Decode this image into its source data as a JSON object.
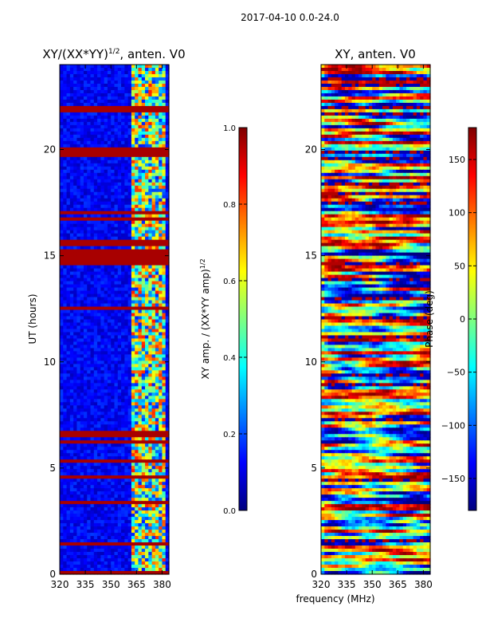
{
  "figure": {
    "suptitle": "2017-04-10 0.0-24.0",
    "xlabel": "frequency (MHz)"
  },
  "chart_data": [
    {
      "type": "heatmap",
      "title": "XY/(XX*YY)^1/2, anten. V0",
      "title_base": "XY/(XX*YY)",
      "title_sup": "1/2",
      "title_tail": ", anten. V0",
      "xlabel": "frequency (MHz)",
      "ylabel": "UT (hours)",
      "xlim": [
        320,
        384
      ],
      "ylim": [
        0,
        24
      ],
      "xticks": [
        320,
        335,
        350,
        365,
        380
      ],
      "xtick_labels": [
        "320",
        "335",
        "350",
        "365",
        "380"
      ],
      "yticks": [
        0,
        5,
        10,
        15,
        20
      ],
      "ytick_labels": [
        "0",
        "5",
        "10",
        "15",
        "20"
      ],
      "colormap": "jet",
      "colorbar": {
        "label": "XY amp. / (XX*YY amp)^1/2",
        "label_base": "XY amp. / (XX*YY amp)",
        "label_sup": "1/2",
        "range": [
          0.0,
          1.0
        ],
        "ticks": [
          0.0,
          0.2,
          0.4,
          0.6,
          0.8,
          1.0
        ],
        "tick_labels": [
          "0.0",
          "0.2",
          "0.4",
          "0.6",
          "0.8",
          "1.0"
        ]
      },
      "description_values": {
        "background_level": 0.12,
        "band_365_383_level": 0.55,
        "saturated_hours": [
          0.0,
          6.2,
          6.5,
          14.6,
          15.0,
          15.6,
          19.8,
          20.0,
          21.9
        ]
      }
    },
    {
      "type": "heatmap",
      "title": "XY, anten. V0",
      "xlabel": "frequency (MHz)",
      "ylabel": "",
      "xlim": [
        320,
        384
      ],
      "ylim": [
        0,
        24
      ],
      "xticks": [
        320,
        335,
        350,
        365,
        380
      ],
      "xtick_labels": [
        "320",
        "335",
        "350",
        "365",
        "380"
      ],
      "yticks": [
        0,
        5,
        10,
        15,
        20
      ],
      "ytick_labels": [
        "0",
        "5",
        "10",
        "15",
        "20"
      ],
      "colormap": "jet",
      "colorbar": {
        "label": "Phase (deg)",
        "range": [
          -180,
          180
        ],
        "ticks": [
          -150,
          -100,
          -50,
          0,
          50,
          100,
          150
        ],
        "tick_labels": [
          "−150",
          "−100",
          "−50",
          "0",
          "50",
          "100",
          "150"
        ]
      }
    }
  ],
  "colors": {
    "jet_stops": [
      "#00007f",
      "#0000ff",
      "#007fff",
      "#00ffff",
      "#7fff7f",
      "#ffff00",
      "#ff7f00",
      "#ff0000",
      "#7f0000"
    ]
  }
}
